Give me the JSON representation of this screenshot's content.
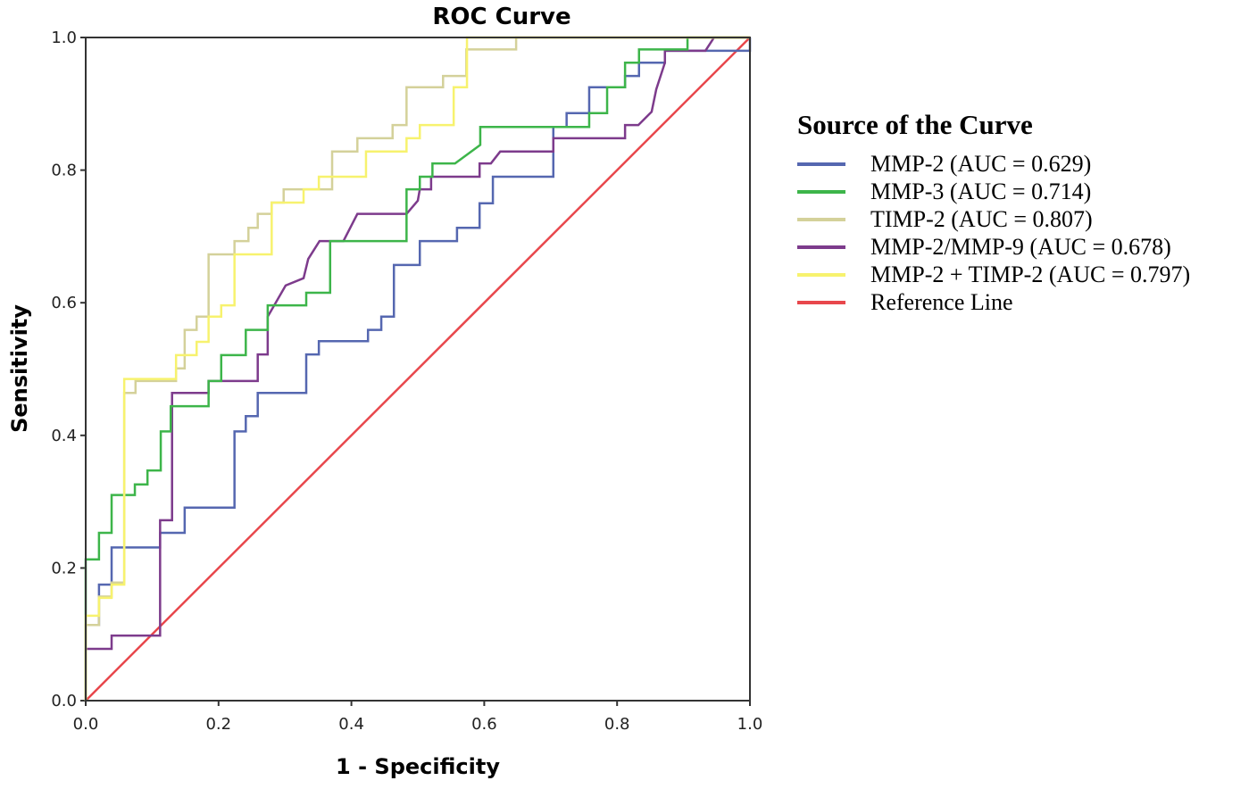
{
  "chart_data": {
    "type": "line",
    "title": "ROC Curve",
    "xlabel": "1 - Specificity",
    "ylabel": "Sensitivity",
    "xlim": [
      0,
      1
    ],
    "ylim": [
      0,
      1
    ],
    "xticks": [
      "0.0",
      "0.2",
      "0.4",
      "0.6",
      "0.8",
      "1.0"
    ],
    "yticks": [
      "0.0",
      "0.2",
      "0.4",
      "0.6",
      "0.8",
      "1.0"
    ],
    "grid": false,
    "legend_title": "Source of the Curve",
    "legend_placement": "right",
    "series": [
      {
        "name": "MMP-2 (AUC = 0.629)",
        "color": "#5567b0",
        "points": [
          [
            0,
            0
          ],
          [
            0,
            0.114
          ],
          [
            0.02,
            0.114
          ],
          [
            0.02,
            0.175
          ],
          [
            0.039,
            0.175
          ],
          [
            0.039,
            0.231
          ],
          [
            0.112,
            0.231
          ],
          [
            0.112,
            0.253
          ],
          [
            0.149,
            0.253
          ],
          [
            0.149,
            0.291
          ],
          [
            0.224,
            0.291
          ],
          [
            0.224,
            0.406
          ],
          [
            0.241,
            0.406
          ],
          [
            0.241,
            0.429
          ],
          [
            0.259,
            0.429
          ],
          [
            0.259,
            0.464
          ],
          [
            0.332,
            0.464
          ],
          [
            0.332,
            0.522
          ],
          [
            0.351,
            0.522
          ],
          [
            0.351,
            0.542
          ],
          [
            0.425,
            0.542
          ],
          [
            0.425,
            0.559
          ],
          [
            0.445,
            0.559
          ],
          [
            0.445,
            0.579
          ],
          [
            0.464,
            0.579
          ],
          [
            0.464,
            0.657
          ],
          [
            0.503,
            0.657
          ],
          [
            0.503,
            0.693
          ],
          [
            0.559,
            0.693
          ],
          [
            0.559,
            0.713
          ],
          [
            0.593,
            0.713
          ],
          [
            0.593,
            0.75
          ],
          [
            0.613,
            0.75
          ],
          [
            0.613,
            0.79
          ],
          [
            0.704,
            0.79
          ],
          [
            0.704,
            0.865
          ],
          [
            0.724,
            0.865
          ],
          [
            0.724,
            0.886
          ],
          [
            0.758,
            0.886
          ],
          [
            0.758,
            0.925
          ],
          [
            0.812,
            0.925
          ],
          [
            0.812,
            0.942
          ],
          [
            0.833,
            0.942
          ],
          [
            0.833,
            0.962
          ],
          [
            0.872,
            0.962
          ],
          [
            0.872,
            0.98
          ],
          [
            1,
            0.98
          ],
          [
            1,
            1
          ]
        ]
      },
      {
        "name": "MMP-3 (AUC = 0.714)",
        "color": "#3db54a",
        "points": [
          [
            0,
            0
          ],
          [
            0,
            0.213
          ],
          [
            0.02,
            0.213
          ],
          [
            0.02,
            0.253
          ],
          [
            0.039,
            0.253
          ],
          [
            0.039,
            0.31
          ],
          [
            0.074,
            0.31
          ],
          [
            0.074,
            0.326
          ],
          [
            0.093,
            0.326
          ],
          [
            0.093,
            0.347
          ],
          [
            0.113,
            0.347
          ],
          [
            0.113,
            0.406
          ],
          [
            0.128,
            0.406
          ],
          [
            0.128,
            0.444
          ],
          [
            0.185,
            0.444
          ],
          [
            0.185,
            0.482
          ],
          [
            0.204,
            0.482
          ],
          [
            0.204,
            0.521
          ],
          [
            0.241,
            0.521
          ],
          [
            0.241,
            0.559
          ],
          [
            0.274,
            0.559
          ],
          [
            0.274,
            0.596
          ],
          [
            0.332,
            0.596
          ],
          [
            0.332,
            0.615
          ],
          [
            0.368,
            0.615
          ],
          [
            0.368,
            0.693
          ],
          [
            0.483,
            0.693
          ],
          [
            0.483,
            0.771
          ],
          [
            0.503,
            0.771
          ],
          [
            0.503,
            0.79
          ],
          [
            0.522,
            0.79
          ],
          [
            0.522,
            0.81
          ],
          [
            0.556,
            0.81
          ],
          [
            0.594,
            0.838
          ],
          [
            0.594,
            0.865
          ],
          [
            0.758,
            0.865
          ],
          [
            0.758,
            0.886
          ],
          [
            0.785,
            0.886
          ],
          [
            0.785,
            0.925
          ],
          [
            0.812,
            0.925
          ],
          [
            0.812,
            0.962
          ],
          [
            0.833,
            0.962
          ],
          [
            0.833,
            0.982
          ],
          [
            0.906,
            0.982
          ],
          [
            0.906,
            1
          ],
          [
            1,
            1
          ]
        ]
      },
      {
        "name": "TIMP-2 (AUC = 0.807)",
        "color": "#d4d19a",
        "points": [
          [
            0,
            0
          ],
          [
            0,
            0.114
          ],
          [
            0.02,
            0.114
          ],
          [
            0.02,
            0.157
          ],
          [
            0.039,
            0.157
          ],
          [
            0.039,
            0.178
          ],
          [
            0.058,
            0.178
          ],
          [
            0.058,
            0.464
          ],
          [
            0.075,
            0.464
          ],
          [
            0.075,
            0.482
          ],
          [
            0.136,
            0.482
          ],
          [
            0.136,
            0.501
          ],
          [
            0.149,
            0.501
          ],
          [
            0.149,
            0.559
          ],
          [
            0.167,
            0.559
          ],
          [
            0.167,
            0.579
          ],
          [
            0.185,
            0.579
          ],
          [
            0.185,
            0.673
          ],
          [
            0.224,
            0.673
          ],
          [
            0.224,
            0.693
          ],
          [
            0.245,
            0.693
          ],
          [
            0.245,
            0.713
          ],
          [
            0.259,
            0.713
          ],
          [
            0.259,
            0.734
          ],
          [
            0.28,
            0.734
          ],
          [
            0.28,
            0.751
          ],
          [
            0.298,
            0.751
          ],
          [
            0.298,
            0.771
          ],
          [
            0.371,
            0.771
          ],
          [
            0.371,
            0.828
          ],
          [
            0.409,
            0.828
          ],
          [
            0.409,
            0.848
          ],
          [
            0.462,
            0.848
          ],
          [
            0.462,
            0.868
          ],
          [
            0.483,
            0.868
          ],
          [
            0.483,
            0.925
          ],
          [
            0.538,
            0.925
          ],
          [
            0.538,
            0.942
          ],
          [
            0.573,
            0.942
          ],
          [
            0.573,
            0.982
          ],
          [
            0.648,
            0.982
          ],
          [
            0.648,
            1
          ],
          [
            1,
            1
          ]
        ]
      },
      {
        "name": "MMP-2/MMP-9 (AUC = 0.678)",
        "color": "#7d3b8c",
        "points": [
          [
            0,
            0
          ],
          [
            0,
            0.078
          ],
          [
            0.039,
            0.078
          ],
          [
            0.039,
            0.098
          ],
          [
            0.112,
            0.098
          ],
          [
            0.112,
            0.272
          ],
          [
            0.13,
            0.272
          ],
          [
            0.13,
            0.464
          ],
          [
            0.185,
            0.464
          ],
          [
            0.185,
            0.482
          ],
          [
            0.259,
            0.482
          ],
          [
            0.259,
            0.522
          ],
          [
            0.274,
            0.522
          ],
          [
            0.274,
            0.579
          ],
          [
            0.301,
            0.626
          ],
          [
            0.328,
            0.637
          ],
          [
            0.335,
            0.666
          ],
          [
            0.352,
            0.693
          ],
          [
            0.388,
            0.693
          ],
          [
            0.409,
            0.734
          ],
          [
            0.483,
            0.734
          ],
          [
            0.5,
            0.754
          ],
          [
            0.503,
            0.771
          ],
          [
            0.52,
            0.771
          ],
          [
            0.52,
            0.79
          ],
          [
            0.593,
            0.79
          ],
          [
            0.593,
            0.81
          ],
          [
            0.61,
            0.81
          ],
          [
            0.624,
            0.828
          ],
          [
            0.704,
            0.828
          ],
          [
            0.704,
            0.848
          ],
          [
            0.812,
            0.848
          ],
          [
            0.812,
            0.868
          ],
          [
            0.832,
            0.868
          ],
          [
            0.852,
            0.888
          ],
          [
            0.859,
            0.922
          ],
          [
            0.872,
            0.962
          ],
          [
            0.872,
            0.98
          ],
          [
            0.933,
            0.98
          ],
          [
            0.946,
            1
          ],
          [
            1,
            1
          ]
        ]
      },
      {
        "name": "MMP-2 + TIMP-2 (AUC = 0.797)",
        "color": "#f7f26e",
        "points": [
          [
            0,
            0
          ],
          [
            0,
            0.128
          ],
          [
            0.02,
            0.128
          ],
          [
            0.02,
            0.155
          ],
          [
            0.039,
            0.155
          ],
          [
            0.039,
            0.175
          ],
          [
            0.058,
            0.175
          ],
          [
            0.058,
            0.485
          ],
          [
            0.136,
            0.485
          ],
          [
            0.136,
            0.521
          ],
          [
            0.167,
            0.521
          ],
          [
            0.167,
            0.541
          ],
          [
            0.185,
            0.541
          ],
          [
            0.185,
            0.579
          ],
          [
            0.204,
            0.579
          ],
          [
            0.204,
            0.596
          ],
          [
            0.224,
            0.596
          ],
          [
            0.224,
            0.673
          ],
          [
            0.28,
            0.673
          ],
          [
            0.28,
            0.751
          ],
          [
            0.328,
            0.751
          ],
          [
            0.328,
            0.771
          ],
          [
            0.351,
            0.771
          ],
          [
            0.351,
            0.79
          ],
          [
            0.422,
            0.79
          ],
          [
            0.422,
            0.828
          ],
          [
            0.483,
            0.828
          ],
          [
            0.483,
            0.848
          ],
          [
            0.503,
            0.848
          ],
          [
            0.503,
            0.868
          ],
          [
            0.554,
            0.868
          ],
          [
            0.554,
            0.925
          ],
          [
            0.574,
            0.925
          ],
          [
            0.574,
            1
          ],
          [
            1,
            1
          ]
        ]
      },
      {
        "name": "Reference Line",
        "color": "#e8474c",
        "points": [
          [
            0,
            0
          ],
          [
            1,
            1
          ]
        ]
      }
    ]
  }
}
